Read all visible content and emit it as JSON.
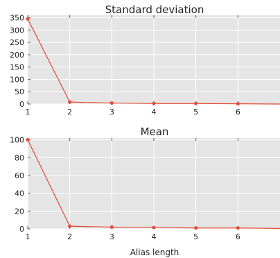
{
  "colors": {
    "plot_background": "#e5e5e5",
    "grid": "#ffffff",
    "line": "#e24a33",
    "text": "#222222"
  },
  "chart_data": [
    {
      "type": "line",
      "title": "Standard deviation",
      "xlabel": "",
      "ylabel": "",
      "x": [
        1,
        2,
        3,
        4,
        5,
        6,
        7
      ],
      "series": [
        {
          "values": [
            345,
            8,
            4,
            2,
            2,
            1,
            0
          ]
        }
      ],
      "xlim": [
        1,
        7
      ],
      "ylim": [
        0,
        360
      ],
      "xticks": [
        1,
        2,
        3,
        4,
        5,
        6
      ],
      "yticks": [
        0,
        50,
        100,
        150,
        200,
        250,
        300,
        350
      ],
      "grid": true
    },
    {
      "type": "line",
      "title": "Mean",
      "xlabel": "Alias length",
      "ylabel": "",
      "x": [
        1,
        2,
        3,
        4,
        5,
        6,
        7
      ],
      "series": [
        {
          "values": [
            100,
            3,
            2,
            1.5,
            1,
            1,
            0.5
          ]
        }
      ],
      "xlim": [
        1,
        7
      ],
      "ylim": [
        0,
        102
      ],
      "xticks": [
        1,
        2,
        3,
        4,
        5,
        6
      ],
      "yticks": [
        0,
        20,
        40,
        60,
        80,
        100
      ],
      "grid": true
    }
  ]
}
